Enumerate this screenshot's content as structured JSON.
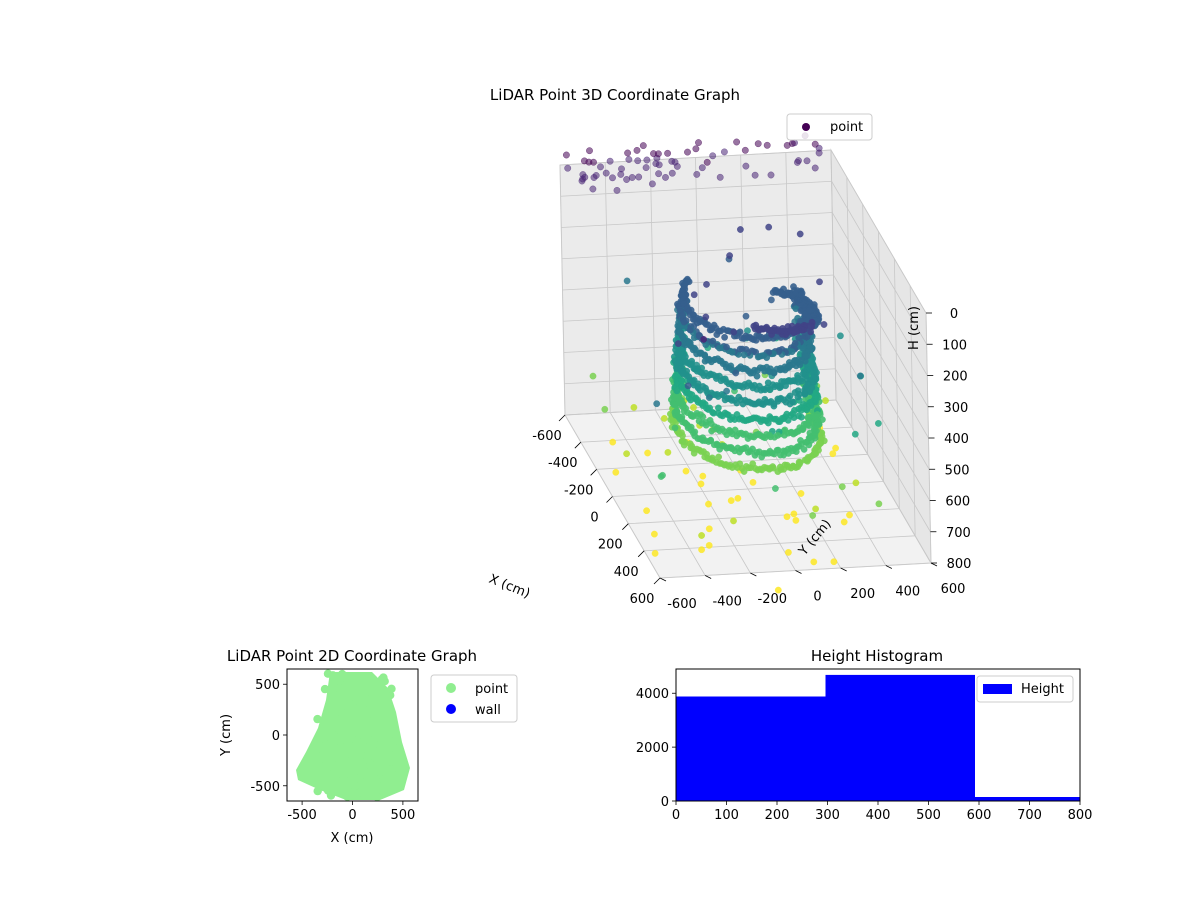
{
  "chart_data": [
    {
      "type": "scatter3d",
      "title": "LiDAR Point 3D Coordinate Graph",
      "xlabel": "X (cm)",
      "ylabel": "Y (cm)",
      "zlabel": "H (cm)",
      "xlim": [
        -600,
        600
      ],
      "ylim": [
        -600,
        600
      ],
      "zlim": [
        0,
        800
      ],
      "x_ticks": [
        "-600",
        "-400",
        "-200",
        "0",
        "200",
        "400",
        "600"
      ],
      "y_ticks": [
        "-600",
        "-400",
        "-200",
        "0",
        "200",
        "400",
        "600"
      ],
      "z_ticks": [
        "0",
        "100",
        "200",
        "300",
        "400",
        "500",
        "600",
        "700",
        "800"
      ],
      "z_inverted": true,
      "grid": true,
      "colormap": "viridis",
      "legend": {
        "placement": "top-right",
        "entries": [
          {
            "label": "point",
            "color": "#440154"
          }
        ]
      }
    },
    {
      "type": "scatter",
      "title": "LiDAR Point 2D Coordinate Graph",
      "xlabel": "X (cm)",
      "ylabel": "Y (cm)",
      "xlim": [
        -650,
        650
      ],
      "ylim": [
        -650,
        650
      ],
      "x_ticks": [
        "-500",
        "0",
        "500"
      ],
      "y_ticks": [
        "500",
        "0",
        "-500"
      ],
      "series": [
        {
          "name": "point",
          "color": "#90ee90"
        },
        {
          "name": "wall",
          "color": "#0000ff"
        }
      ],
      "legend": {
        "placement": "outside-right"
      }
    },
    {
      "type": "bar",
      "title": "Height Histogram",
      "xlabel": "",
      "ylabel": "",
      "xlim": [
        0,
        800
      ],
      "ylim": [
        0,
        4900
      ],
      "x_ticks": [
        "0",
        "100",
        "200",
        "300",
        "400",
        "500",
        "600",
        "700",
        "800"
      ],
      "y_ticks": [
        "0",
        "2000",
        "4000"
      ],
      "bins": [
        {
          "start": 0,
          "end": 296,
          "value": 3880
        },
        {
          "start": 296,
          "end": 592,
          "value": 4680
        },
        {
          "start": 592,
          "end": 800,
          "value": 150
        }
      ],
      "series": [
        {
          "name": "Height",
          "color": "#0000ff"
        }
      ],
      "legend": {
        "placement": "top-right"
      }
    }
  ]
}
